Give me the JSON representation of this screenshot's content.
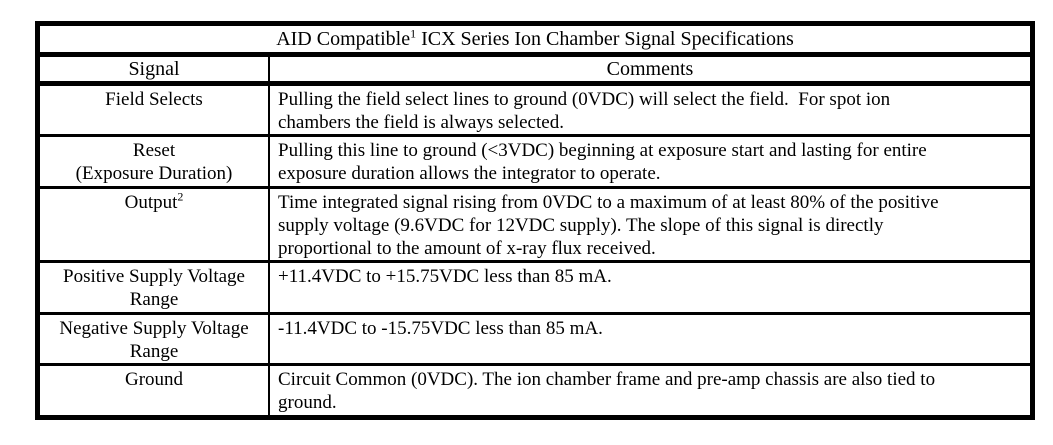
{
  "page": {
    "background": "#ffffff",
    "border_color": "#000000",
    "text_color": "#000000"
  },
  "table": {
    "title": {
      "prefix": "AID Compatible",
      "superscript": "1",
      "suffix": " ICX Series Ion Chamber Signal Specifications"
    },
    "header": {
      "signal": "Signal",
      "comments": "Comments"
    },
    "rows": [
      {
        "signal_line1": "Field Selects",
        "comment_line1": "Pulling the field select lines to ground (0VDC) will select the field.  For spot ion",
        "comment_line2": "chambers the field is always selected."
      },
      {
        "signal_line1": "Reset",
        "signal_line2": "(Exposure Duration)",
        "comment_line1": "Pulling this line to ground (<3VDC) beginning at exposure start and lasting for entire",
        "comment_line2": "exposure duration allows the integrator to operate."
      },
      {
        "signal_line1": "Output",
        "signal_superscript": "2",
        "comment_line1": "Time integrated signal rising from 0VDC to a maximum of at least 80% of the positive",
        "comment_line2": "supply voltage (9.6VDC for 12VDC supply). The slope of this signal is directly",
        "comment_line3": "proportional to the amount of x-ray flux received."
      },
      {
        "signal_line1": "Positive Supply Voltage",
        "signal_line2": "Range",
        "comment_line1": "+11.4VDC to +15.75VDC less than 85 mA."
      },
      {
        "signal_line1": "Negative Supply Voltage",
        "signal_line2": "Range",
        "comment_line1": "-11.4VDC to -15.75VDC less than 85 mA."
      },
      {
        "signal_line1": "Ground",
        "comment_line1": "Circuit Common (0VDC). The ion chamber frame and pre-amp chassis are also tied to",
        "comment_line2": "ground."
      }
    ]
  }
}
